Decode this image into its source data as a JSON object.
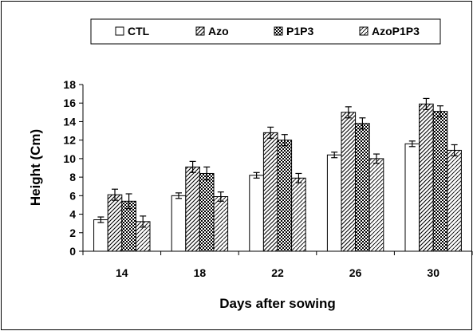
{
  "chart_data": {
    "type": "bar",
    "title": "",
    "xlabel": "Days after sowing",
    "ylabel": "Height (Cm)",
    "categories": [
      "14",
      "18",
      "22",
      "26",
      "30"
    ],
    "ylim": [
      0,
      18
    ],
    "yticks": [
      0,
      2,
      4,
      6,
      8,
      10,
      12,
      14,
      16,
      18
    ],
    "grid": false,
    "legend_position": "top",
    "series": [
      {
        "name": "CTL",
        "pattern": "plain",
        "values": [
          3.4,
          6.0,
          8.2,
          10.4,
          11.6
        ],
        "errors": [
          0.3,
          0.3,
          0.3,
          0.3,
          0.3
        ]
      },
      {
        "name": "Azo",
        "pattern": "diagonal",
        "values": [
          6.1,
          9.1,
          12.8,
          15.0,
          15.9
        ],
        "errors": [
          0.6,
          0.6,
          0.6,
          0.6,
          0.6
        ]
      },
      {
        "name": "P1P3",
        "pattern": "checker",
        "values": [
          5.4,
          8.4,
          12.0,
          13.8,
          15.1
        ],
        "errors": [
          0.8,
          0.7,
          0.6,
          0.6,
          0.6
        ]
      },
      {
        "name": "AzoP1P3",
        "pattern": "zigzag",
        "values": [
          3.2,
          5.9,
          7.9,
          10.0,
          10.9
        ],
        "errors": [
          0.6,
          0.5,
          0.5,
          0.5,
          0.6
        ]
      }
    ]
  }
}
